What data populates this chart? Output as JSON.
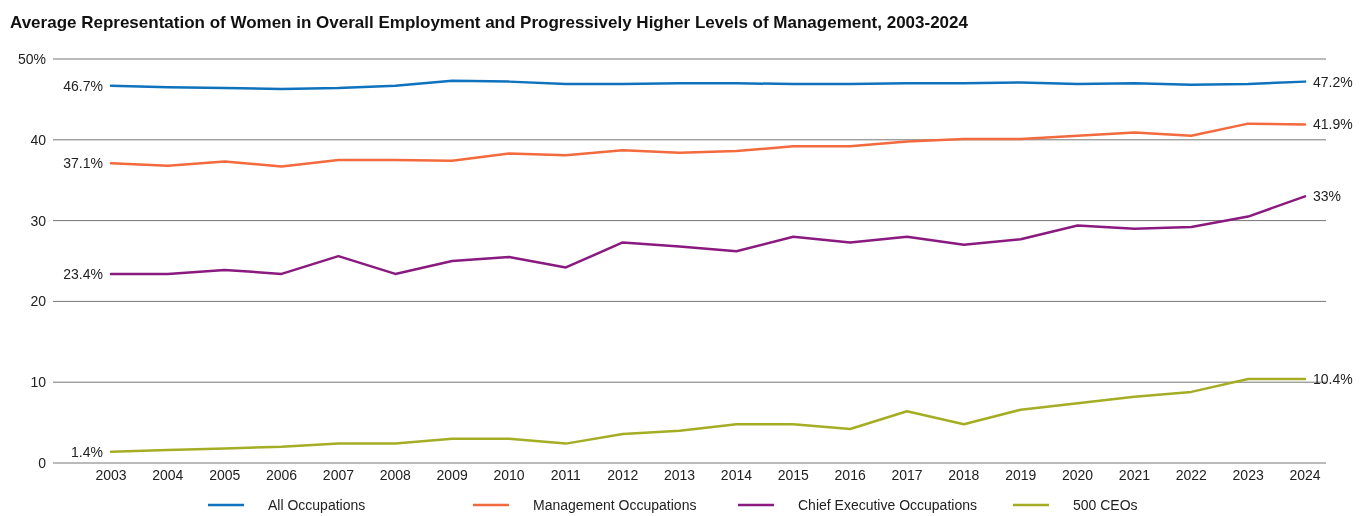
{
  "chart_data": {
    "type": "line",
    "title": "Average Representation of Women in Overall Employment and Progressively Higher Levels of Management, 2003-2024",
    "categories": [
      "2003",
      "2004",
      "2005",
      "2006",
      "2007",
      "2008",
      "2009",
      "2010",
      "2011",
      "2012",
      "2013",
      "2014",
      "2015",
      "2016",
      "2017",
      "2018",
      "2019",
      "2020",
      "2021",
      "2022",
      "2023",
      "2024"
    ],
    "series": [
      {
        "name": "All Occupations",
        "color": "#0f72bd",
        "values": [
          46.7,
          46.5,
          46.4,
          46.3,
          46.4,
          46.7,
          47.3,
          47.2,
          46.9,
          46.9,
          47.0,
          47.0,
          46.9,
          46.9,
          47.0,
          47.0,
          47.1,
          46.9,
          47.0,
          46.8,
          46.9,
          47.2
        ],
        "value_labels": [
          "46.7%",
          null,
          null,
          null,
          null,
          null,
          null,
          null,
          null,
          null,
          null,
          null,
          null,
          null,
          null,
          null,
          null,
          null,
          null,
          null,
          null,
          "47.2%"
        ]
      },
      {
        "name": "Management Occupations",
        "color": "#f26a3d",
        "values": [
          37.1,
          36.8,
          37.3,
          36.7,
          37.5,
          37.5,
          37.4,
          38.3,
          38.1,
          38.7,
          38.4,
          38.6,
          39.2,
          39.2,
          39.8,
          40.1,
          40.1,
          40.5,
          40.9,
          40.5,
          42.0,
          41.9
        ],
        "value_labels": [
          "37.1%",
          null,
          null,
          null,
          null,
          null,
          null,
          null,
          null,
          null,
          null,
          null,
          null,
          null,
          null,
          null,
          null,
          null,
          null,
          null,
          null,
          "41.9%"
        ]
      },
      {
        "name": "Chief Executive Occupations",
        "color": "#8a1a7f",
        "values": [
          23.4,
          23.4,
          23.9,
          23.4,
          25.6,
          23.4,
          25.0,
          25.5,
          24.2,
          27.3,
          26.8,
          26.2,
          28.0,
          27.3,
          28.0,
          27.0,
          27.7,
          29.4,
          29.0,
          29.2,
          30.5,
          33
        ],
        "value_labels": [
          "23.4%",
          null,
          null,
          null,
          null,
          null,
          null,
          null,
          null,
          null,
          null,
          null,
          null,
          null,
          null,
          null,
          null,
          null,
          null,
          null,
          null,
          "33%"
        ]
      },
      {
        "name": "500 CEOs",
        "color": "#a5ad24",
        "values": [
          1.4,
          1.6,
          1.8,
          2.0,
          2.4,
          2.4,
          3.0,
          3.0,
          2.4,
          3.6,
          4.0,
          4.8,
          4.8,
          4.2,
          6.4,
          4.8,
          6.6,
          7.4,
          8.2,
          8.8,
          10.4,
          10.4
        ],
        "value_labels": [
          "1.4%",
          null,
          null,
          null,
          null,
          null,
          null,
          null,
          null,
          null,
          null,
          null,
          null,
          null,
          null,
          null,
          null,
          null,
          null,
          null,
          null,
          "10.4%"
        ]
      }
    ],
    "ylim": [
      0,
      50
    ],
    "yticks": [
      0,
      10,
      20,
      30,
      40,
      {
        "value": 50,
        "label": "50%"
      }
    ],
    "grid": "y",
    "legend": "bottom",
    "marker": "none",
    "line_style": "solid"
  }
}
